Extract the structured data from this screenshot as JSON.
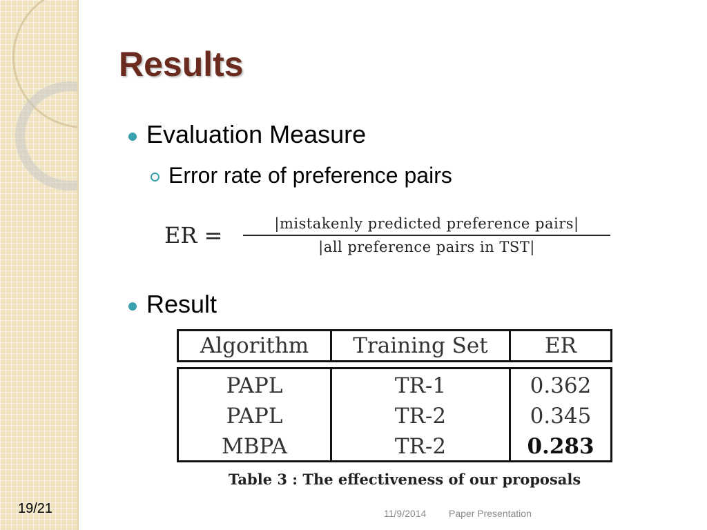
{
  "slide": {
    "title": "Results",
    "bullets": [
      {
        "text": "Evaluation Measure"
      },
      {
        "text": "Result"
      }
    ],
    "sub_bullet": "Error rate of preference pairs",
    "formula": {
      "lhs": "ER =",
      "numerator": "|mistakenly predicted preference pairs|",
      "denominator": "|all preference pairs in TST|"
    },
    "table": {
      "headers": [
        "Algorithm",
        "Training Set",
        "ER"
      ],
      "rows": [
        [
          "PAPL",
          "TR-1",
          "0.362"
        ],
        [
          "PAPL",
          "TR-2",
          "0.345"
        ],
        [
          "MBPA",
          "TR-2",
          "0.283"
        ]
      ]
    },
    "caption": "Table 3 :  The effectiveness of our proposals",
    "page_number": "19/21",
    "footer": {
      "date": "11/9/2014",
      "presentation": "Paper Presentation"
    }
  },
  "colors": {
    "title": "#6b2a1e",
    "bullet": "#39a0b0",
    "sidebar": "#efe3c2"
  }
}
